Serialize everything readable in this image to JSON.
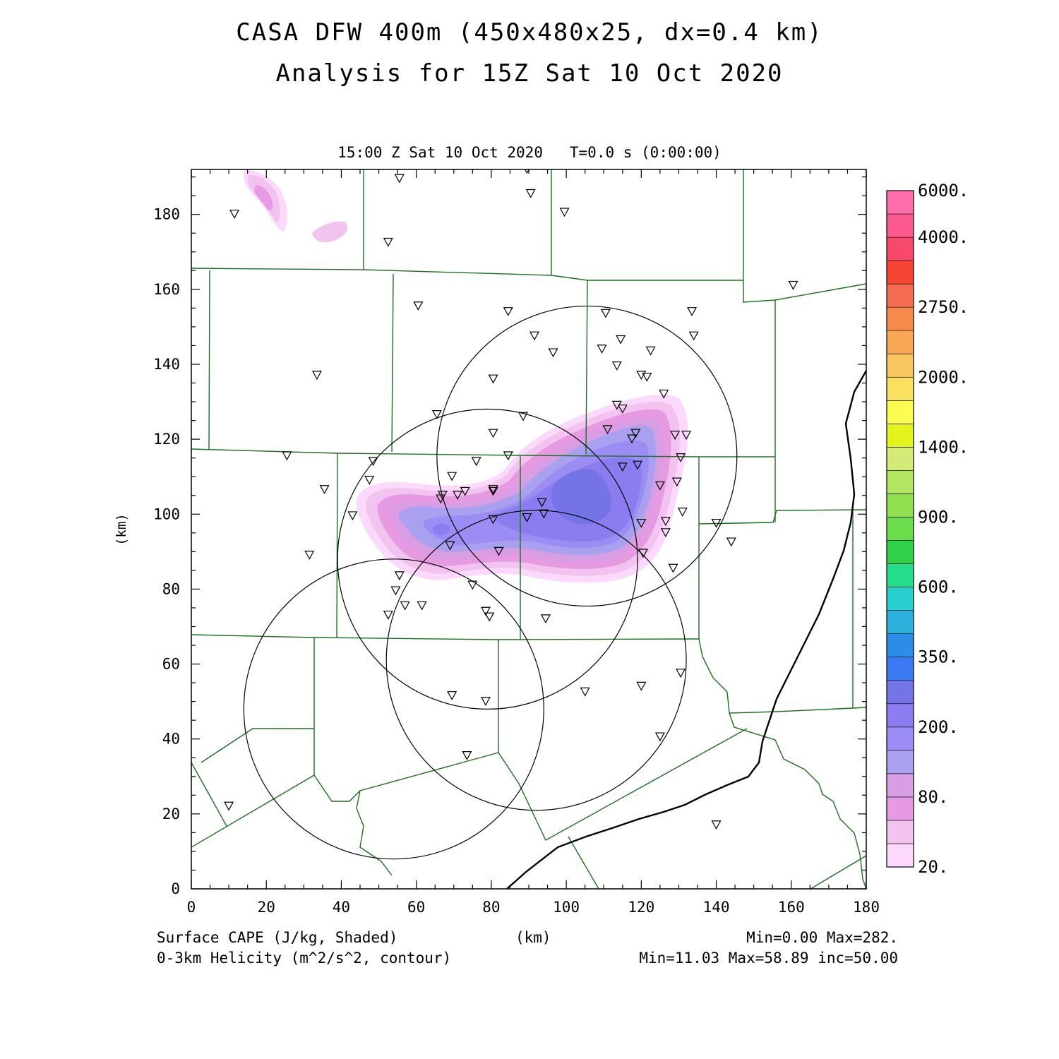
{
  "title": {
    "line1": "CASA DFW 400m (450x480x25, dx=0.4 km)",
    "line2": "Analysis for 15Z Sat 10 Oct 2020"
  },
  "subtitle": "15:00 Z Sat 10 Oct 2020   T=0.0 s (0:00:00)",
  "axes": {
    "x_label": "(km)",
    "y_label": "(km)",
    "x_range": [
      0,
      180
    ],
    "y_range": [
      0,
      192
    ],
    "x_ticks": [
      "0",
      "20",
      "40",
      "60",
      "80",
      "100",
      "120",
      "140",
      "160",
      "180"
    ],
    "y_ticks": [
      "0",
      "20",
      "40",
      "60",
      "80",
      "100",
      "120",
      "140",
      "160",
      "180"
    ]
  },
  "footer": {
    "field1": "Surface CAPE (J/kg, Shaded)",
    "field2": "0-3km Helicity (m^2/s^2, contour)",
    "stats1": "Min=0.00 Max=282.",
    "stats2": "Min=11.03 Max=58.89 inc=50.00"
  },
  "colorbar": {
    "colors": [
      "#fcd9fc",
      "#f2c3ef",
      "#e59ae2",
      "#d79ee3",
      "#a9a0ef",
      "#9b8df3",
      "#8b7def",
      "#7474e6",
      "#3a7bf5",
      "#2c8de6",
      "#2bafdb",
      "#2bcfcf",
      "#25de8c",
      "#30d048",
      "#6cdd4a",
      "#91e052",
      "#b2e660",
      "#d4ea76",
      "#e3f41d",
      "#fbfc52",
      "#f9e061",
      "#f8c560",
      "#f7a753",
      "#f68a4c",
      "#f36c52",
      "#f74533",
      "#f7496c",
      "#fb5a8f",
      "#fd6cab"
    ],
    "labels": [
      {
        "text": "20.",
        "index": 0
      },
      {
        "text": "80.",
        "index": 3
      },
      {
        "text": "200.",
        "index": 6
      },
      {
        "text": "350.",
        "index": 9
      },
      {
        "text": "600.",
        "index": 12
      },
      {
        "text": "900.",
        "index": 15
      },
      {
        "text": "1400.",
        "index": 18
      },
      {
        "text": "2000.",
        "index": 21
      },
      {
        "text": "2750.",
        "index": 24
      },
      {
        "text": "4000.",
        "index": 27
      },
      {
        "text": "6000.",
        "index": 29
      }
    ]
  },
  "circles": [
    {
      "cx": 105.5,
      "cy": 115.5,
      "r": 40
    },
    {
      "cx": 79,
      "cy": 88,
      "r": 40
    },
    {
      "cx": 92,
      "cy": 61,
      "r": 40
    },
    {
      "cx": 54,
      "cy": 48,
      "r": 40
    }
  ],
  "stations": [
    [
      11.5,
      180
    ],
    [
      55.5,
      189.5
    ],
    [
      89.5,
      192
    ],
    [
      90.5,
      185.5
    ],
    [
      99.5,
      180.5
    ],
    [
      52.5,
      172.5
    ],
    [
      60.5,
      155.5
    ],
    [
      84.5,
      154
    ],
    [
      110.5,
      153.5
    ],
    [
      133.5,
      154
    ],
    [
      91.5,
      147.5
    ],
    [
      114.5,
      146.5
    ],
    [
      134,
      147.5
    ],
    [
      109.5,
      144
    ],
    [
      122.5,
      143.5
    ],
    [
      96.5,
      143
    ],
    [
      113.5,
      139.5
    ],
    [
      120,
      137
    ],
    [
      121.5,
      136.5
    ],
    [
      33.5,
      137
    ],
    [
      80.5,
      136
    ],
    [
      126,
      132
    ],
    [
      113.5,
      129
    ],
    [
      115,
      128
    ],
    [
      65.5,
      126.5
    ],
    [
      88.5,
      126
    ],
    [
      111,
      122.5
    ],
    [
      80.5,
      121.5
    ],
    [
      118.5,
      121.5
    ],
    [
      117.5,
      120
    ],
    [
      129,
      121
    ],
    [
      132,
      121
    ],
    [
      25.5,
      115.5
    ],
    [
      84.5,
      115.5
    ],
    [
      130.5,
      115
    ],
    [
      69.5,
      110
    ],
    [
      76,
      114
    ],
    [
      48.5,
      114
    ],
    [
      115,
      112.5
    ],
    [
      119,
      113
    ],
    [
      35.5,
      106.5
    ],
    [
      47.5,
      109
    ],
    [
      80.5,
      106.5
    ],
    [
      80.5,
      106
    ],
    [
      73,
      106
    ],
    [
      71,
      105
    ],
    [
      67,
      105
    ],
    [
      66.5,
      104
    ],
    [
      129.5,
      108.5
    ],
    [
      125,
      107.5
    ],
    [
      43,
      99.5
    ],
    [
      93.5,
      103
    ],
    [
      94,
      100
    ],
    [
      89.5,
      99
    ],
    [
      80.5,
      98.5
    ],
    [
      131,
      100.5
    ],
    [
      126.5,
      98
    ],
    [
      120,
      97.5
    ],
    [
      140,
      97.5
    ],
    [
      126.5,
      95
    ],
    [
      69,
      91.5
    ],
    [
      144,
      92.5
    ],
    [
      82,
      90
    ],
    [
      120.5,
      89.5
    ],
    [
      31.5,
      89
    ],
    [
      128.5,
      85.5
    ],
    [
      55.5,
      83.5
    ],
    [
      75,
      81
    ],
    [
      54.5,
      79.5
    ],
    [
      57,
      75.5
    ],
    [
      61.5,
      75.5
    ],
    [
      78.5,
      74
    ],
    [
      79.5,
      72.5
    ],
    [
      52.5,
      73
    ],
    [
      94.5,
      72
    ],
    [
      130.5,
      57.5
    ],
    [
      120,
      54
    ],
    [
      105,
      52.5
    ],
    [
      69.5,
      51.5
    ],
    [
      78.5,
      50
    ],
    [
      125,
      40.5
    ],
    [
      73.5,
      35.5
    ],
    [
      10,
      22
    ],
    [
      140,
      17
    ],
    [
      160.5,
      161
    ]
  ]
}
